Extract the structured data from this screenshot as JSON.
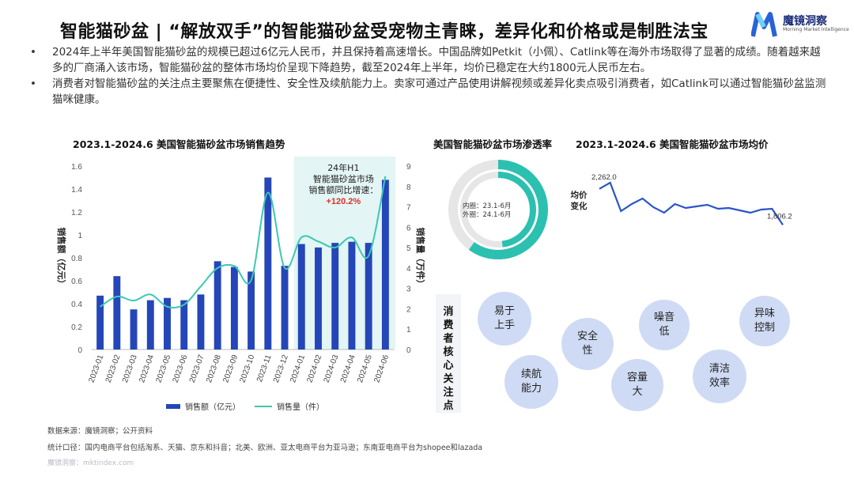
{
  "title": "智能猫砂盆 | “解放双手”的智能猫砂盆受宠物主青睐，差异化和价格或是制胜法宝",
  "logo": {
    "name": "魔镜洞察",
    "subtitle": "Morning Market Intelligence"
  },
  "bullets": [
    "2024年上半年美国智能猫砂盆的规模已超过6亿元人民币，并且保持着高速增长。中国品牌如Petkit（小佩）、Catlink等在海外市场取得了显著的成绩。随着越来越多的厂商涌入该市场，智能猫砂盆的整体市场均价呈现下降趋势，截至2024年上半年，均价已稳定在大约1800元人民币左右。",
    "消费者对智能猫砂盆的关注点主要聚焦在便捷性、安全性及续航能力上。卖家可通过产品使用讲解视频或差异化卖点吸引消费者，如Catlink可以通过智能猫砂盆监测猫咪健康。"
  ],
  "bullet_marker": "•",
  "charts_titles": {
    "main": "2023.1-2024.6 美国智能猫砂盆市场销售趋势",
    "donut": "美国智能猫砂盆市场渗透率",
    "price": "2023.1-2024.6 美国智能猫砂盆市场均价"
  },
  "colors": {
    "bar": "#2446b8",
    "bar_light": "#5b7be0",
    "line": "#3cc8b4",
    "teal": "#2cc0b0",
    "price_line": "#2a55c8",
    "highlight_bg": "#e3f5f4",
    "growth": "#e0302a"
  },
  "chart_data": [
    {
      "type": "bar",
      "title": "2023.1-2024.6 美国智能猫砂盆市场销售趋势",
      "categories": [
        "2023-01",
        "2023-02",
        "2023-03",
        "2023-04",
        "2023-05",
        "2023-06",
        "2023-07",
        "2023-08",
        "2023-09",
        "2023-10",
        "2023-11",
        "2023-12",
        "2024-01",
        "2024-02",
        "2024-03",
        "2024-04",
        "2024-05",
        "2024-06"
      ],
      "series": [
        {
          "name": "销售额（亿元）",
          "type": "bar",
          "axis": "left",
          "values": [
            0.47,
            0.64,
            0.35,
            0.43,
            0.45,
            0.43,
            0.48,
            0.77,
            0.72,
            0.68,
            1.5,
            0.73,
            0.92,
            0.89,
            0.93,
            0.94,
            0.93,
            1.48
          ]
        },
        {
          "name": "销售量（件）",
          "type": "line",
          "axis": "right",
          "values": [
            2.1,
            2.6,
            2.4,
            2.7,
            2.1,
            2.2,
            3.1,
            4.0,
            4.1,
            3.4,
            7.7,
            4.0,
            5.5,
            5.3,
            5.0,
            5.5,
            4.6,
            8.5
          ]
        }
      ],
      "ylabel": "销售额（亿元）",
      "y2label": "销售量（万件）",
      "ylim": [
        0,
        1.6
      ],
      "yticks": [
        "0",
        "0.2",
        "0.4",
        "0.6",
        "0.8",
        "1",
        "1.2",
        "1.4",
        "1.6"
      ],
      "y2lim": [
        0,
        9
      ],
      "y2ticks": [
        "0",
        "1",
        "2",
        "3",
        "4",
        "5",
        "6",
        "7",
        "8",
        "9"
      ],
      "annotation": {
        "line1": "24年H1",
        "line2": "智能猫砂盆市场",
        "line3": "销售额同比增速：",
        "value": "+120.2%"
      },
      "legend": {
        "position": "bottom",
        "bar_label": "销售额（亿元）",
        "line_label": "销售量（件）"
      },
      "grid": false
    },
    {
      "type": "pie",
      "title": "美国智能猫砂盆市场渗透率",
      "labels": [
        "内圈：23.1-6月",
        "外圈：24.1-6月"
      ],
      "inner_fraction": 0.48,
      "outer_fraction": 0.6
    },
    {
      "type": "line",
      "title": "2023.1-2024.6 美国智能猫砂盆市场均价",
      "ylabel": "均价变化",
      "values": [
        2262.0,
        2340,
        1980,
        2070,
        2140,
        2030,
        1960,
        2070,
        2020,
        2040,
        2060,
        2010,
        2020,
        1990,
        1960,
        2000,
        2010,
        1806.2
      ],
      "labels_shown": [
        "2,262.0",
        "1,806.2"
      ],
      "grid": false
    }
  ],
  "focus": {
    "title": "消费者核心关注点",
    "bubbles": [
      {
        "line1": "易于",
        "line2": "上手"
      },
      {
        "line1": "续航",
        "line2": "能力"
      },
      {
        "line1": "安全",
        "line2": "性"
      },
      {
        "line1": "容量",
        "line2": "大"
      },
      {
        "line1": "噪音",
        "line2": "低"
      },
      {
        "line1": "清洁",
        "line2": "效率"
      },
      {
        "line1": "异味",
        "line2": "控制"
      }
    ]
  },
  "footer": {
    "source": "数据来源：魔镜洞察；公开资料",
    "scope": "统计口径：国内电商平台包括淘系、天猫、京东和抖音；北美、欧洲、亚太电商平台为亚马逊；东南亚电商平台为shopee和lazada",
    "watermark": "魔镜洞察：mktindex.com"
  }
}
